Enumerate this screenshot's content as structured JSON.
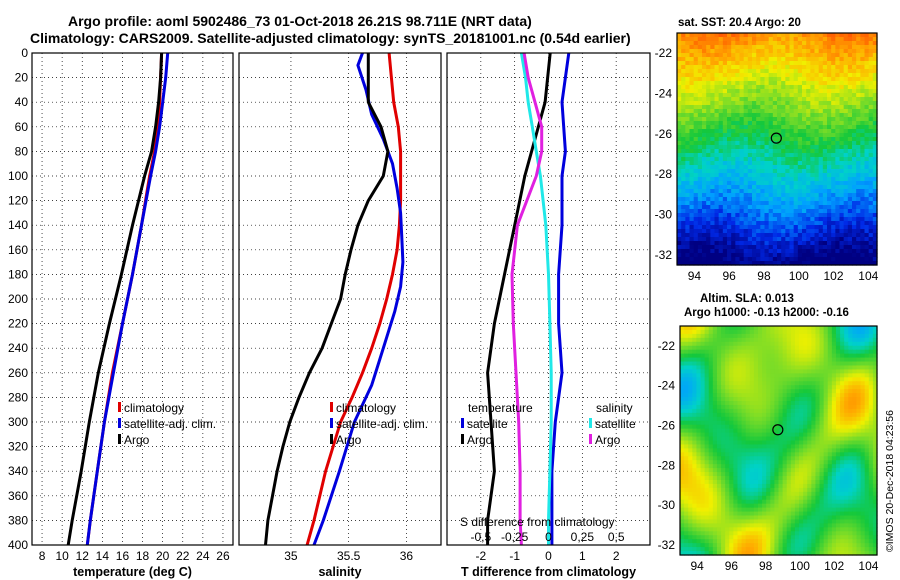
{
  "header": {
    "line1": "Argo profile: aoml 5902486_73 01-Oct-2018 26.21S 98.711E (NRT data)",
    "line2": "Climatology: CARS2009. Satellite-adjusted climatology: synTS_20181001.nc (0.54d earlier)"
  },
  "colors": {
    "climatology": "#e00000",
    "satellite": "#0000dd",
    "argo": "#000000",
    "magenta": "#e020e0",
    "cyan": "#20e8e8"
  },
  "depth_ticks": [
    "0",
    "20",
    "40",
    "60",
    "80",
    "100",
    "120",
    "140",
    "160",
    "180",
    "200",
    "220",
    "240",
    "260",
    "280",
    "300",
    "320",
    "340",
    "360",
    "380",
    "400"
  ],
  "chart_data": [
    {
      "type": "line",
      "name": "temperature",
      "xlabel": "temperature (deg C)",
      "xlim": [
        7,
        27
      ],
      "ylim": [
        400,
        0
      ],
      "xticks": [
        8,
        10,
        12,
        14,
        16,
        18,
        20,
        22,
        24,
        26
      ],
      "xtick_labels": [
        "8",
        "10",
        "12",
        "14",
        "16",
        "18",
        "20",
        "22",
        "24",
        "26"
      ],
      "legend": [
        "climatology",
        "satellite-adj. clim.",
        "Argo"
      ],
      "series": [
        {
          "name": "climatology",
          "color": "#e00000",
          "depth": [
            0,
            20,
            40,
            60,
            80,
            100,
            140,
            180,
            220,
            260,
            300,
            340,
            380,
            400
          ],
          "values": [
            19.9,
            19.8,
            19.7,
            19.5,
            19.2,
            18.7,
            17.9,
            17.0,
            16.0,
            15.0,
            14.2,
            13.5,
            12.8,
            12.5
          ]
        },
        {
          "name": "satellite-adj. clim.",
          "color": "#0000dd",
          "depth": [
            0,
            20,
            40,
            60,
            80,
            100,
            140,
            180,
            220,
            260,
            300,
            340,
            380,
            400
          ],
          "values": [
            20.5,
            20.3,
            20.0,
            19.7,
            19.3,
            18.8,
            17.9,
            17.0,
            16.0,
            15.1,
            14.2,
            13.5,
            12.8,
            12.5
          ]
        },
        {
          "name": "Argo",
          "color": "#000000",
          "depth": [
            0,
            20,
            40,
            60,
            80,
            100,
            140,
            180,
            220,
            260,
            300,
            340,
            380,
            400
          ],
          "values": [
            19.9,
            19.8,
            19.6,
            19.3,
            18.9,
            18.2,
            17.0,
            15.9,
            14.7,
            13.6,
            12.7,
            11.9,
            11.0,
            10.6
          ]
        }
      ]
    },
    {
      "type": "line",
      "name": "salinity",
      "xlabel": "salinity",
      "xlim": [
        34.55,
        36.3
      ],
      "ylim": [
        400,
        0
      ],
      "xticks": [
        35,
        35.5,
        36
      ],
      "xtick_labels": [
        "35",
        "35.5",
        "36"
      ],
      "legend": [
        "climatology",
        "satellite-adj. clim.",
        "Argo"
      ],
      "series": [
        {
          "name": "climatology",
          "color": "#e00000",
          "depth": [
            0,
            20,
            40,
            60,
            80,
            100,
            120,
            140,
            160,
            180,
            200,
            220,
            240,
            260,
            280,
            300,
            340,
            380,
            400
          ],
          "values": [
            35.85,
            35.87,
            35.89,
            35.93,
            35.95,
            35.95,
            35.95,
            35.94,
            35.92,
            35.88,
            35.83,
            35.77,
            35.7,
            35.62,
            35.53,
            35.43,
            35.3,
            35.2,
            35.14
          ]
        },
        {
          "name": "satellite-adj. clim.",
          "color": "#0000dd",
          "depth": [
            0,
            10,
            30,
            50,
            70,
            90,
            110,
            130,
            150,
            170,
            190,
            210,
            240,
            270,
            300,
            340,
            380,
            400
          ],
          "values": [
            35.62,
            35.58,
            35.65,
            35.7,
            35.8,
            35.88,
            35.92,
            35.95,
            35.96,
            35.97,
            35.95,
            35.9,
            35.8,
            35.7,
            35.55,
            35.42,
            35.28,
            35.2
          ]
        },
        {
          "name": "Argo",
          "color": "#000000",
          "depth": [
            0,
            40,
            60,
            80,
            100,
            120,
            140,
            160,
            180,
            200,
            220,
            240,
            260,
            280,
            300,
            320,
            340,
            360,
            380,
            400
          ],
          "values": [
            35.67,
            35.67,
            35.78,
            35.84,
            35.8,
            35.67,
            35.58,
            35.52,
            35.47,
            35.43,
            35.35,
            35.27,
            35.16,
            35.07,
            34.99,
            34.93,
            34.88,
            34.84,
            34.8,
            34.78
          ]
        }
      ]
    },
    {
      "type": "line",
      "name": "difference",
      "xlabel": "T difference from climatology",
      "sublabel": "S difference from climatology",
      "xlim": [
        -3,
        3
      ],
      "ylim": [
        400,
        0
      ],
      "xticks": [
        -2,
        -1,
        0,
        1,
        2
      ],
      "xtick_labels": [
        "-2",
        "-1",
        "0",
        "1",
        "2"
      ],
      "s_xticks": [
        -0.5,
        -0.25,
        0,
        0.25,
        0.5
      ],
      "s_xtick_labels": [
        "-0,5",
        "-0,25",
        "0",
        "0,25",
        "0,5"
      ],
      "legend": {
        "temperature": "temperature",
        "salinity": "salinity",
        "satellite": "satellite",
        "argo": "Argo"
      },
      "series": [
        {
          "name": "T satellite",
          "color": "#0000dd",
          "depth": [
            0,
            20,
            40,
            60,
            80,
            100,
            140,
            180,
            220,
            260,
            300,
            340,
            380,
            400
          ],
          "values": [
            0.6,
            0.5,
            0.4,
            0.45,
            0.5,
            0.4,
            0.4,
            0.3,
            0.3,
            0.4,
            0.2,
            0.1,
            0.1,
            0.1
          ]
        },
        {
          "name": "T Argo",
          "color": "#000000",
          "depth": [
            0,
            40,
            80,
            100,
            140,
            180,
            220,
            260,
            300,
            340,
            380,
            400
          ],
          "values": [
            0.05,
            -0.1,
            -0.5,
            -0.7,
            -1.0,
            -1.3,
            -1.6,
            -1.8,
            -1.7,
            -1.6,
            -1.8,
            -1.8
          ]
        },
        {
          "name": "S satellite",
          "color": "#20e8e8",
          "depth": [
            0,
            20,
            40,
            60,
            80,
            100,
            140,
            180,
            220,
            260,
            300,
            340,
            380,
            400
          ],
          "values": [
            -0.2,
            -0.17,
            -0.15,
            -0.12,
            -0.09,
            -0.06,
            -0.02,
            0.0,
            0.01,
            0.02,
            0.02,
            0.01,
            0.0,
            0.0
          ]
        },
        {
          "name": "S Argo",
          "color": "#e020e0",
          "depth": [
            0,
            20,
            40,
            60,
            80,
            100,
            140,
            180,
            220,
            260,
            300,
            340,
            380,
            400
          ],
          "values": [
            -0.18,
            -0.15,
            -0.1,
            -0.05,
            -0.05,
            -0.09,
            -0.23,
            -0.27,
            -0.26,
            -0.24,
            -0.22,
            -0.21,
            -0.21,
            -0.2
          ]
        }
      ]
    },
    {
      "type": "heatmap",
      "name": "sst_map",
      "title": "sat. SST: 20.4 Argo: 20",
      "xticks": [
        "94",
        "96",
        "98",
        "100",
        "102",
        "104"
      ],
      "yticks": [
        "-22",
        "-24",
        "-26",
        "-28",
        "-30",
        "-32"
      ],
      "marker": {
        "lon": 98.711,
        "lat": -26.21
      }
    },
    {
      "type": "heatmap",
      "name": "sla_map",
      "title": "Altim. SLA: 0.013",
      "subtitle": "Argo h1000: -0.13 h2000: -0.16",
      "xticks": [
        "94",
        "96",
        "98",
        "100",
        "102",
        "104"
      ],
      "yticks": [
        "-22",
        "-24",
        "-26",
        "-28",
        "-30",
        "-32"
      ],
      "marker": {
        "lon": 98.711,
        "lat": -26.21
      }
    }
  ],
  "footer": {
    "credit": "©IMOS 20-Dec-2018 04:23:56"
  }
}
